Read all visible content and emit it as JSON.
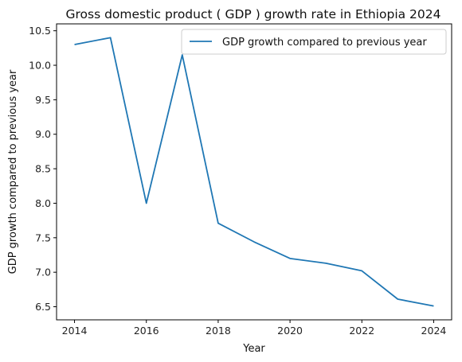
{
  "chart_data": {
    "type": "line",
    "title": "Gross domestic product ( GDP ) growth rate in Ethiopia 2024",
    "xlabel": "Year",
    "ylabel": "GDP growth compared to previous year",
    "x": [
      2014,
      2015,
      2016,
      2017,
      2018,
      2019,
      2020,
      2021,
      2022,
      2023,
      2024
    ],
    "series": [
      {
        "name": "GDP growth compared to previous year",
        "values": [
          10.3,
          10.4,
          8.0,
          10.15,
          7.71,
          7.44,
          7.2,
          7.13,
          7.02,
          6.61,
          6.51
        ],
        "color": "#1f77b4"
      }
    ],
    "xlim": [
      2013.5,
      2024.5
    ],
    "ylim": [
      6.31,
      10.6
    ],
    "xticks": [
      2014,
      2016,
      2018,
      2020,
      2022,
      2024
    ],
    "xtick_labels": [
      "2014",
      "2016",
      "2018",
      "2020",
      "2022",
      "2024"
    ],
    "yticks": [
      6.5,
      7.0,
      7.5,
      8.0,
      8.5,
      9.0,
      9.5,
      10.0,
      10.5
    ],
    "ytick_labels": [
      "6.5",
      "7.0",
      "7.5",
      "8.0",
      "8.5",
      "9.0",
      "9.5",
      "10.0",
      "10.5"
    ],
    "grid": false,
    "legend_position": "top-right"
  }
}
